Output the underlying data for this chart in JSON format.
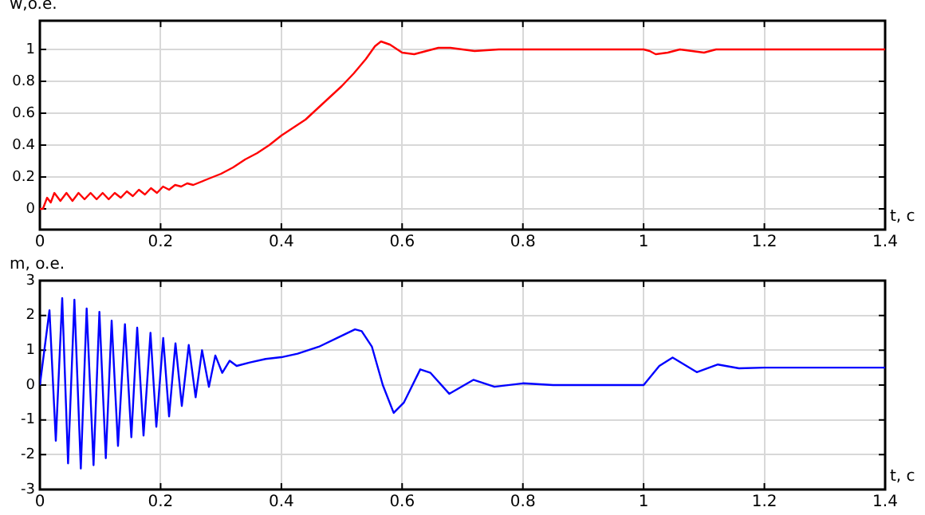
{
  "chart_data": [
    {
      "type": "line",
      "xlabel": "t, c",
      "ylabel": "w,o.e.",
      "xlim": [
        0,
        1.4
      ],
      "xticks": [
        0,
        0.2,
        0.4,
        0.6,
        0.8,
        1,
        1.2,
        1.4
      ],
      "ylim": [
        -0.13,
        1.18
      ],
      "yticks": [
        0,
        0.2,
        0.4,
        0.6,
        0.8,
        1
      ],
      "grid": true,
      "legend": false,
      "marker": "none",
      "line_style": "solid",
      "series": [
        {
          "color": "#ff0000",
          "x": [
            0,
            0.005,
            0.012,
            0.018,
            0.024,
            0.034,
            0.044,
            0.054,
            0.064,
            0.074,
            0.084,
            0.094,
            0.104,
            0.114,
            0.124,
            0.134,
            0.144,
            0.154,
            0.164,
            0.174,
            0.184,
            0.194,
            0.204,
            0.214,
            0.224,
            0.234,
            0.244,
            0.254,
            0.28,
            0.3,
            0.32,
            0.34,
            0.36,
            0.38,
            0.4,
            0.42,
            0.44,
            0.46,
            0.48,
            0.5,
            0.52,
            0.54,
            0.555,
            0.565,
            0.58,
            0.6,
            0.62,
            0.64,
            0.66,
            0.68,
            0.7,
            0.72,
            0.76,
            0.8,
            1,
            1.01,
            1.02,
            1.04,
            1.06,
            1.08,
            1.1,
            1.12,
            1.2,
            1.4
          ],
          "values": [
            0,
            0,
            0.07,
            0.04,
            0.1,
            0.05,
            0.1,
            0.05,
            0.1,
            0.06,
            0.1,
            0.06,
            0.1,
            0.06,
            0.1,
            0.07,
            0.11,
            0.08,
            0.12,
            0.09,
            0.13,
            0.1,
            0.14,
            0.12,
            0.15,
            0.14,
            0.16,
            0.15,
            0.19,
            0.22,
            0.26,
            0.31,
            0.35,
            0.4,
            0.46,
            0.51,
            0.56,
            0.63,
            0.7,
            0.77,
            0.85,
            0.94,
            1.02,
            1.05,
            1.03,
            0.98,
            0.97,
            0.99,
            1.01,
            1.01,
            1,
            0.99,
            1,
            1,
            1,
            0.99,
            0.97,
            0.98,
            1,
            0.99,
            0.98,
            1,
            1,
            1
          ]
        }
      ]
    },
    {
      "type": "line",
      "xlabel": "t, c",
      "ylabel": "m, o.e.",
      "xlim": [
        0,
        1.4
      ],
      "xticks": [
        0,
        0.2,
        0.4,
        0.6,
        0.8,
        1,
        1.2,
        1.4
      ],
      "ylim": [
        -3,
        3
      ],
      "yticks": [
        -3,
        -2,
        -1,
        0,
        1,
        2,
        3
      ],
      "grid": true,
      "legend": false,
      "marker": "none",
      "line_style": "solid",
      "series": [
        {
          "color": "#0000ff",
          "x": [
            0,
            0.0159,
            0.0264,
            0.037,
            0.0467,
            0.0572,
            0.0678,
            0.0775,
            0.0889,
            0.0986,
            0.1092,
            0.1189,
            0.1294,
            0.1409,
            0.1515,
            0.1612,
            0.1717,
            0.1832,
            0.1929,
            0.2043,
            0.214,
            0.2246,
            0.2351,
            0.2466,
            0.258,
            0.2686,
            0.28,
            0.2906,
            0.3021,
            0.3144,
            0.3259,
            0.348,
            0.374,
            0.4,
            0.427,
            0.462,
            0.498,
            0.522,
            0.533,
            0.55,
            0.568,
            0.586,
            0.603,
            0.63,
            0.647,
            0.678,
            0.718,
            0.753,
            0.8,
            0.85,
            1,
            1.026,
            1.048,
            1.088,
            1.123,
            1.158,
            1.2,
            1.4
          ],
          "values": [
            0,
            2.15,
            -1.6,
            2.5,
            -2.25,
            2.45,
            -2.4,
            2.2,
            -2.3,
            2.1,
            -2.1,
            1.85,
            -1.75,
            1.75,
            -1.5,
            1.65,
            -1.45,
            1.5,
            -1.2,
            1.35,
            -0.9,
            1.2,
            -0.6,
            1.15,
            -0.35,
            1,
            -0.05,
            0.85,
            0.35,
            0.7,
            0.55,
            0.65,
            0.75,
            0.8,
            0.9,
            1.1,
            1.4,
            1.6,
            1.55,
            1.1,
            0,
            -0.8,
            -0.5,
            0.45,
            0.35,
            -0.25,
            0.15,
            -0.05,
            0.05,
            0,
            0,
            0.55,
            0.79,
            0.37,
            0.59,
            0.48,
            0.5,
            0.5
          ]
        }
      ]
    }
  ]
}
